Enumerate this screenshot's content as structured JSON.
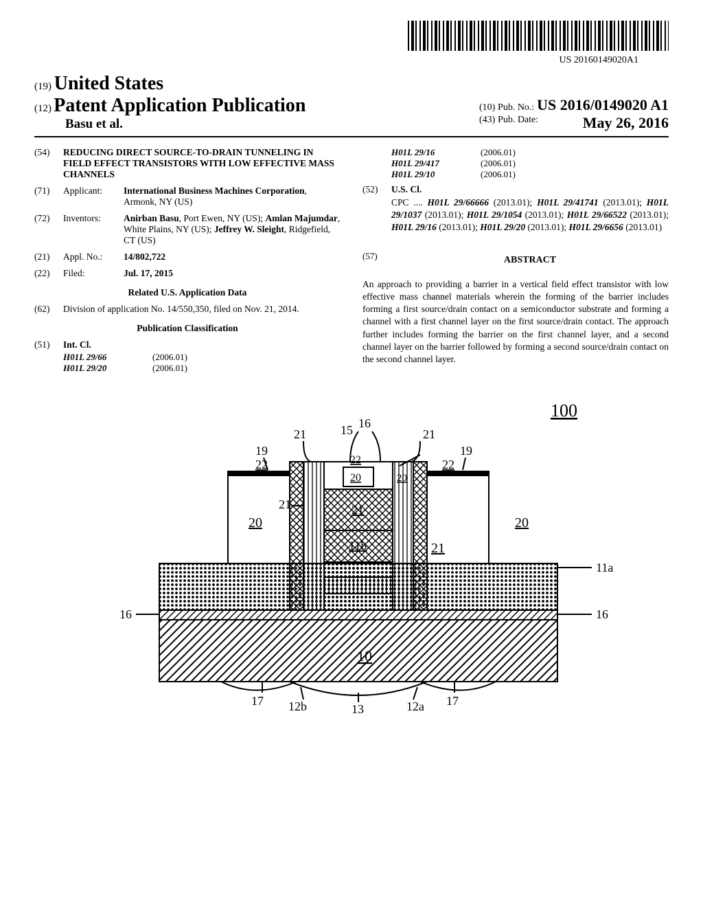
{
  "doc_id": "US 20160149020A1",
  "header": {
    "code19": "(19)",
    "country": "United States",
    "code12": "(12)",
    "pub_type": "Patent Application Publication",
    "authors": "Basu et al.",
    "code10": "(10)",
    "pub_no_label": "Pub. No.:",
    "pub_no": "US 2016/0149020 A1",
    "code43": "(43)",
    "pub_date_label": "Pub. Date:",
    "pub_date": "May 26, 2016"
  },
  "left": {
    "title_inid": "(54)",
    "title": "REDUCING DIRECT SOURCE-TO-DRAIN TUNNELING IN FIELD EFFECT TRANSISTORS WITH LOW EFFECTIVE MASS CHANNELS",
    "applicant_inid": "(71)",
    "applicant_label": "Applicant:",
    "applicant": "International Business Machines Corporation",
    "applicant_loc": ", Armonk, NY (US)",
    "inventors_inid": "(72)",
    "inventors_label": "Inventors:",
    "inventors_html": "Anirban Basu|, Port Ewen, NY (US); |Amlan Majumdar|, White Plains, NY (US); |Jeffrey W. Sleight|, Ridgefield, CT (US)",
    "appl_inid": "(21)",
    "appl_label": "Appl. No.:",
    "appl_no": "14/802,722",
    "filed_inid": "(22)",
    "filed_label": "Filed:",
    "filed": "Jul. 17, 2015",
    "related_head": "Related U.S. Application Data",
    "related_inid": "(62)",
    "related": "Division of application No. 14/550,350, filed on Nov. 21, 2014.",
    "pubclass_head": "Publication Classification",
    "intcl_inid": "(51)",
    "intcl_label": "Int. Cl.",
    "intcl": [
      {
        "code": "H01L 29/66",
        "ver": "(2006.01)"
      },
      {
        "code": "H01L 29/20",
        "ver": "(2006.01)"
      }
    ]
  },
  "right": {
    "intcl_cont": [
      {
        "code": "H01L 29/16",
        "ver": "(2006.01)"
      },
      {
        "code": "H01L 29/417",
        "ver": "(2006.01)"
      },
      {
        "code": "H01L 29/10",
        "ver": "(2006.01)"
      }
    ],
    "uscl_inid": "(52)",
    "uscl_label": "U.S. Cl.",
    "cpc_prefix": "CPC ....",
    "cpc_items": [
      {
        "code": "H01L 29/66666",
        "date": "(2013.01)"
      },
      {
        "code": "H01L 29/41741",
        "date": "(2013.01)"
      },
      {
        "code": "H01L 29/1037",
        "date": "(2013.01)"
      },
      {
        "code": "H01L 29/1054",
        "date": "(2013.01)"
      },
      {
        "code": "H01L 29/66522",
        "date": "(2013.01)"
      },
      {
        "code": "H01L 29/16",
        "date": "(2013.01)"
      },
      {
        "code": "H01L 29/20",
        "date": "(2013.01)"
      },
      {
        "code": "H01L 29/6656",
        "date": "(2013.01)"
      }
    ],
    "abstract_inid": "(57)",
    "abstract_head": "ABSTRACT",
    "abstract": "An approach to providing a barrier in a vertical field effect transistor with low effective mass channel materials wherein the forming of the barrier includes forming a first source/drain contact on a semiconductor substrate and forming a channel with a first channel layer on the first source/drain contact. The approach further includes forming the barrier on the first channel layer, and a second channel layer on the barrier followed by forming a second source/drain contact on the second channel layer."
  },
  "figure": {
    "ref_num": "100",
    "labels": [
      "10",
      "11a",
      "11b",
      "12a",
      "12b",
      "13",
      "15",
      "16",
      "17",
      "19",
      "20",
      "21",
      "22"
    ],
    "colors": {
      "line": "#000000",
      "bg": "#ffffff"
    }
  }
}
